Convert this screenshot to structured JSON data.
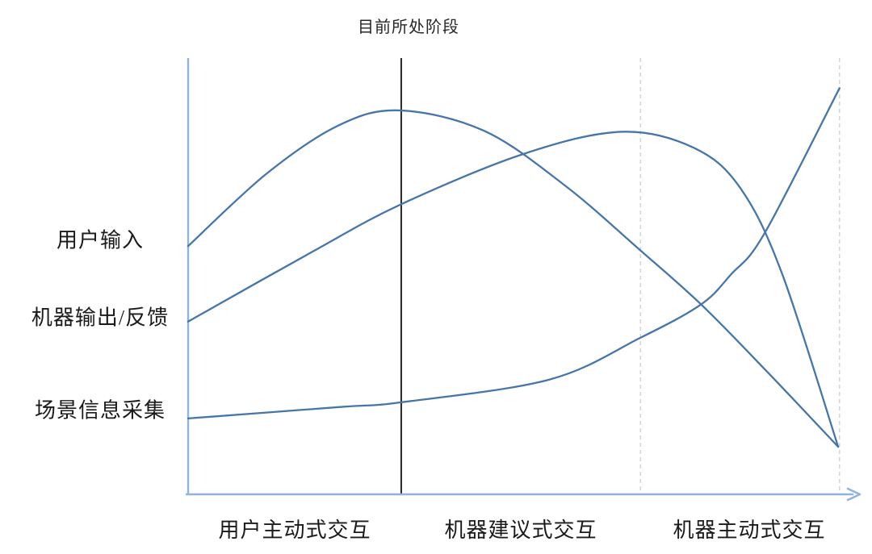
{
  "colors": {
    "curve": "#4676A9",
    "axis": "#8FB4DC",
    "marker_solid": "#262626",
    "dashed": "#D2D2D2",
    "text": "#1A1A1A"
  },
  "chart_data": {
    "type": "line",
    "title": "目前所处阶段",
    "grid": false,
    "legend": "none",
    "axis_range": {
      "x": [
        0,
        100
      ],
      "y": [
        0,
        100
      ]
    },
    "x_stage_labels": [
      "用户主动式交互",
      "机器建议式交互",
      "机器主动式交互"
    ],
    "series": [
      {
        "name": "用户输入",
        "color": "#4676A9",
        "points": [
          [
            0,
            56.9
          ],
          [
            11.7,
            73.5
          ],
          [
            22.5,
            84.6
          ],
          [
            31.6,
            88.0
          ],
          [
            44.2,
            83.3
          ],
          [
            56.3,
            70.7
          ],
          [
            67.5,
            55.9
          ],
          [
            76.7,
            43.3
          ],
          [
            86.4,
            28.1
          ],
          [
            97.0,
            10.9
          ]
        ]
      },
      {
        "name": "机器输出/反馈",
        "color": "#4676A9",
        "points": [
          [
            0,
            39.6
          ],
          [
            18.3,
            55.4
          ],
          [
            31.8,
            66.5
          ],
          [
            50.2,
            78.1
          ],
          [
            64.7,
            83.1
          ],
          [
            75.5,
            79.4
          ],
          [
            82.4,
            70.2
          ],
          [
            88.6,
            50.7
          ],
          [
            97.0,
            10.9
          ]
        ]
      },
      {
        "name": "场景信息采集",
        "color": "#4676A9",
        "points": [
          [
            0,
            17.4
          ],
          [
            22.5,
            20.0
          ],
          [
            31.8,
            21.1
          ],
          [
            53.9,
            26.3
          ],
          [
            67.5,
            35.9
          ],
          [
            76.5,
            43.5
          ],
          [
            81.0,
            50.4
          ],
          [
            86.0,
            59.8
          ],
          [
            97.2,
            93.1
          ]
        ]
      }
    ],
    "marker_lines": [
      {
        "label": "目前所处阶段",
        "x": 31.8,
        "style": "solid",
        "color": "#262626"
      },
      {
        "label": "",
        "x": 67.5,
        "style": "dashed",
        "color": "#D2D2D2"
      },
      {
        "label": "",
        "x": 97.2,
        "style": "dashed",
        "color": "#D2D2D2"
      }
    ]
  }
}
